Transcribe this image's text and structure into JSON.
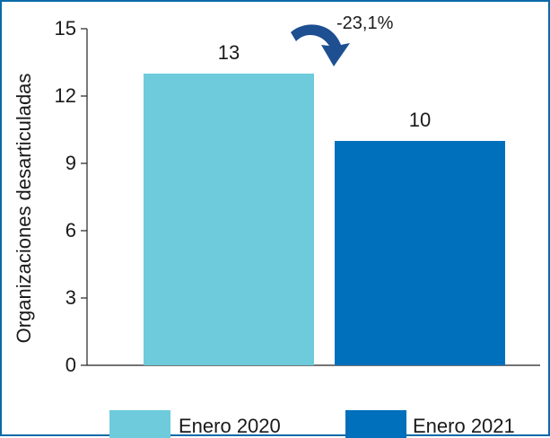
{
  "chart_data": {
    "type": "bar",
    "categories": [
      "Enero 2020",
      "Enero 2021"
    ],
    "values": [
      13,
      10
    ],
    "value_labels": [
      "13",
      "10"
    ],
    "colors": [
      "#6ecbdc",
      "#0070bc"
    ],
    "ylabel": "Organizaciones desarticuladas",
    "ylim": [
      0,
      15
    ],
    "yticks": [
      0,
      3,
      6,
      9,
      12,
      15
    ],
    "grid": false,
    "legend": {
      "placement": "bottom",
      "entries": [
        "Enero 2020",
        "Enero 2021"
      ]
    },
    "annotation": {
      "text": "-23,1%",
      "arrow_color": "#1d4f91",
      "arrow_icon": "curved-arrow-down-icon"
    }
  }
}
